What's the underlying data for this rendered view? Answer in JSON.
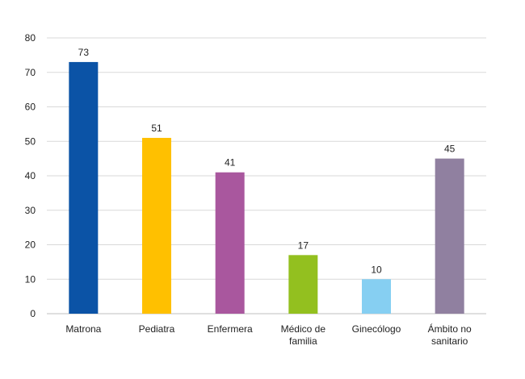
{
  "chart_data": {
    "type": "bar",
    "title": "",
    "xlabel": "",
    "ylabel": "",
    "ylim": [
      0,
      80
    ],
    "yticks": [
      0,
      10,
      20,
      30,
      40,
      50,
      60,
      70,
      80
    ],
    "grid": true,
    "categories": [
      [
        "Matrona"
      ],
      [
        "Pediatra"
      ],
      [
        "Enfermera"
      ],
      [
        "Médico de",
        "familia"
      ],
      [
        "Ginecólogo"
      ],
      [
        "Ámbito no",
        "sanitario"
      ]
    ],
    "values": [
      73,
      51,
      41,
      17,
      10,
      45
    ],
    "colors": [
      "#0b53a6",
      "#ffc000",
      "#a9579e",
      "#93c01f",
      "#86cff2",
      "#9080a0"
    ]
  }
}
